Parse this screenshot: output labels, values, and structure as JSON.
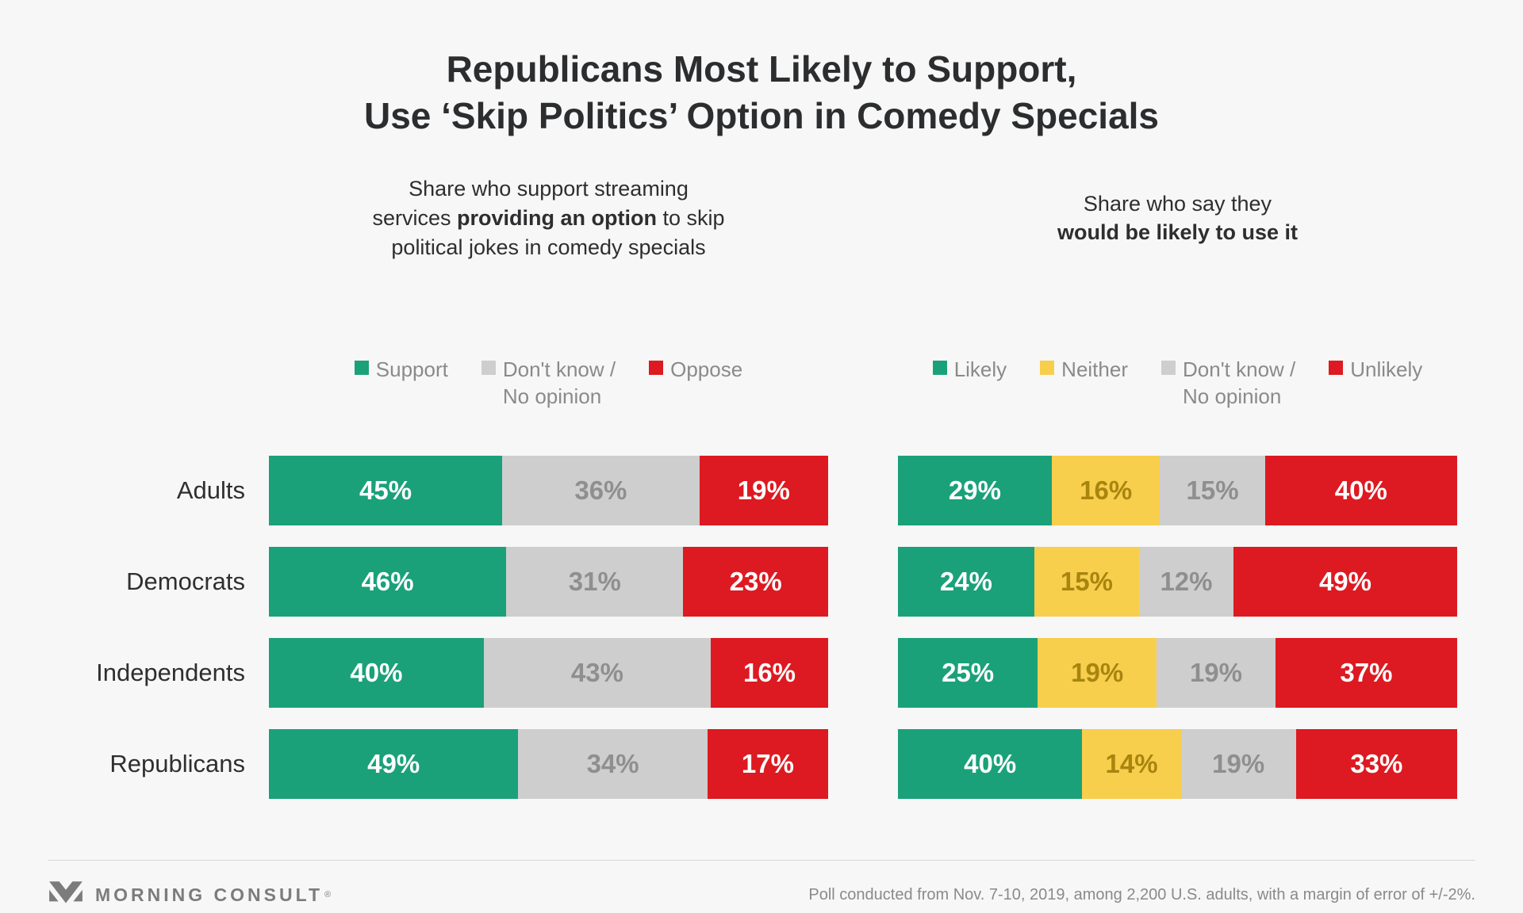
{
  "page": {
    "background": "#f7f7f7"
  },
  "title": {
    "line1": "Republicans Most Likely to Support,",
    "line2": "Use ‘Skip Politics’ Option in Comedy Specials"
  },
  "colors": {
    "green": "#1aa179",
    "yellow": "#f8ce4d",
    "gray": "#cecece",
    "red": "#dd1a21",
    "gray_text": "#8f8f8f",
    "gold_text": "#a7850e",
    "white_text": "#ffffff"
  },
  "chart_data": [
    {
      "type": "bar",
      "stacked": true,
      "orientation": "horizontal",
      "xlim": [
        0,
        100
      ],
      "value_suffix": "%",
      "show_category_labels": true,
      "title": "Share who support streaming services providing an option to skip political jokes in comedy specials",
      "subtitle_lines": [
        [
          {
            "text": "Share who support streaming",
            "bold": false
          }
        ],
        [
          {
            "text": "services ",
            "bold": false
          },
          {
            "text": "providing an option",
            "bold": true
          },
          {
            "text": " to skip",
            "bold": false
          }
        ],
        [
          {
            "text": "political jokes in comedy specials",
            "bold": false
          }
        ]
      ],
      "categories": [
        "Adults",
        "Democrats",
        "Independents",
        "Republicans"
      ],
      "series": [
        {
          "name": "Support",
          "legend_label": "Support",
          "color": "#1aa179",
          "label_color": "#ffffff",
          "values": [
            45,
            46,
            40,
            49
          ]
        },
        {
          "name": "Don't know / No opinion",
          "legend_label": "Don't know /\nNo opinion",
          "color": "#cecece",
          "label_color": "#8f8f8f",
          "values": [
            36,
            31,
            43,
            34
          ]
        },
        {
          "name": "Oppose",
          "legend_label": "Oppose",
          "color": "#dd1a21",
          "label_color": "#ffffff",
          "values": [
            19,
            23,
            16,
            17
          ]
        }
      ]
    },
    {
      "type": "bar",
      "stacked": true,
      "orientation": "horizontal",
      "xlim": [
        0,
        100
      ],
      "value_suffix": "%",
      "show_category_labels": false,
      "title": "Share who say they would be likely to use it",
      "subtitle_lines": [
        [
          {
            "text": "Share who say they",
            "bold": false
          }
        ],
        [
          {
            "text": "would be likely to use it",
            "bold": true
          }
        ]
      ],
      "categories": [
        "Adults",
        "Democrats",
        "Independents",
        "Republicans"
      ],
      "series": [
        {
          "name": "Likely",
          "legend_label": "Likely",
          "color": "#1aa179",
          "label_color": "#ffffff",
          "values": [
            29,
            24,
            25,
            40
          ]
        },
        {
          "name": "Neither",
          "legend_label": "Neither",
          "color": "#f8ce4d",
          "label_color": "#a7850e",
          "values": [
            16,
            15,
            19,
            14
          ]
        },
        {
          "name": "Don't know / No opinion",
          "legend_label": "Don't know /\nNo opinion",
          "color": "#cecece",
          "label_color": "#8f8f8f",
          "values": [
            15,
            12,
            19,
            19
          ]
        },
        {
          "name": "Unlikely",
          "legend_label": "Unlikely",
          "color": "#dd1a21",
          "label_color": "#ffffff",
          "values": [
            40,
            49,
            37,
            33
          ]
        }
      ]
    }
  ],
  "footer": {
    "brand": "MORNING CONSULT",
    "reg": "®",
    "note": "Poll conducted from Nov. 7-10, 2019, among 2,200 U.S. adults, with a margin of error of +/-2%."
  }
}
